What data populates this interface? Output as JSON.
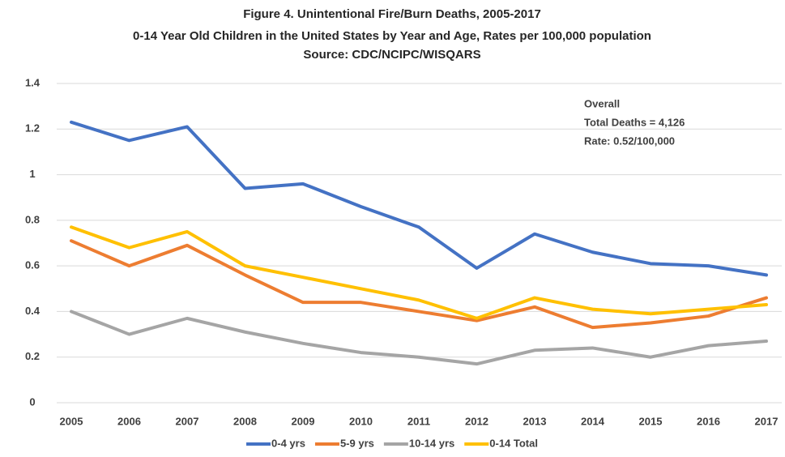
{
  "chart_data": {
    "type": "line",
    "title": "Figure 4. Unintentional Fire/Burn Deaths, 2005-2017",
    "subtitle": "0-14 Year Old Children in the United States by Year and Age, Rates per 100,000 population",
    "source": "Source: CDC/NCIPC/WISQARS",
    "annotation": [
      "Overall",
      "Total Deaths = 4,126",
      "Rate: 0.52/100,000"
    ],
    "categories": [
      "2005",
      "2006",
      "2007",
      "2008",
      "2009",
      "2010",
      "2011",
      "2012",
      "2013",
      "2014",
      "2015",
      "2016",
      "2017"
    ],
    "series": [
      {
        "name": "0-4 yrs",
        "color": "#4472c4",
        "values": [
          1.23,
          1.15,
          1.21,
          0.94,
          0.96,
          0.86,
          0.77,
          0.59,
          0.74,
          0.66,
          0.61,
          0.6,
          0.56
        ]
      },
      {
        "name": "5-9 yrs",
        "color": "#ed7d31",
        "values": [
          0.71,
          0.6,
          0.69,
          0.56,
          0.44,
          0.44,
          0.4,
          0.36,
          0.42,
          0.33,
          0.35,
          0.38,
          0.46
        ]
      },
      {
        "name": "10-14 yrs",
        "color": "#a5a5a5",
        "values": [
          0.4,
          0.3,
          0.37,
          0.31,
          0.26,
          0.22,
          0.2,
          0.17,
          0.23,
          0.24,
          0.2,
          0.25,
          0.27
        ]
      },
      {
        "name": "0-14 Total",
        "color": "#ffc000",
        "values": [
          0.77,
          0.68,
          0.75,
          0.6,
          0.55,
          0.5,
          0.45,
          0.37,
          0.46,
          0.41,
          0.39,
          0.41,
          0.43
        ]
      }
    ],
    "ylim": [
      0,
      1.4
    ],
    "yticks": [
      0,
      0.2,
      0.4,
      0.6,
      0.8,
      1,
      1.2,
      1.4
    ],
    "grid": true,
    "legend": "bottom"
  }
}
